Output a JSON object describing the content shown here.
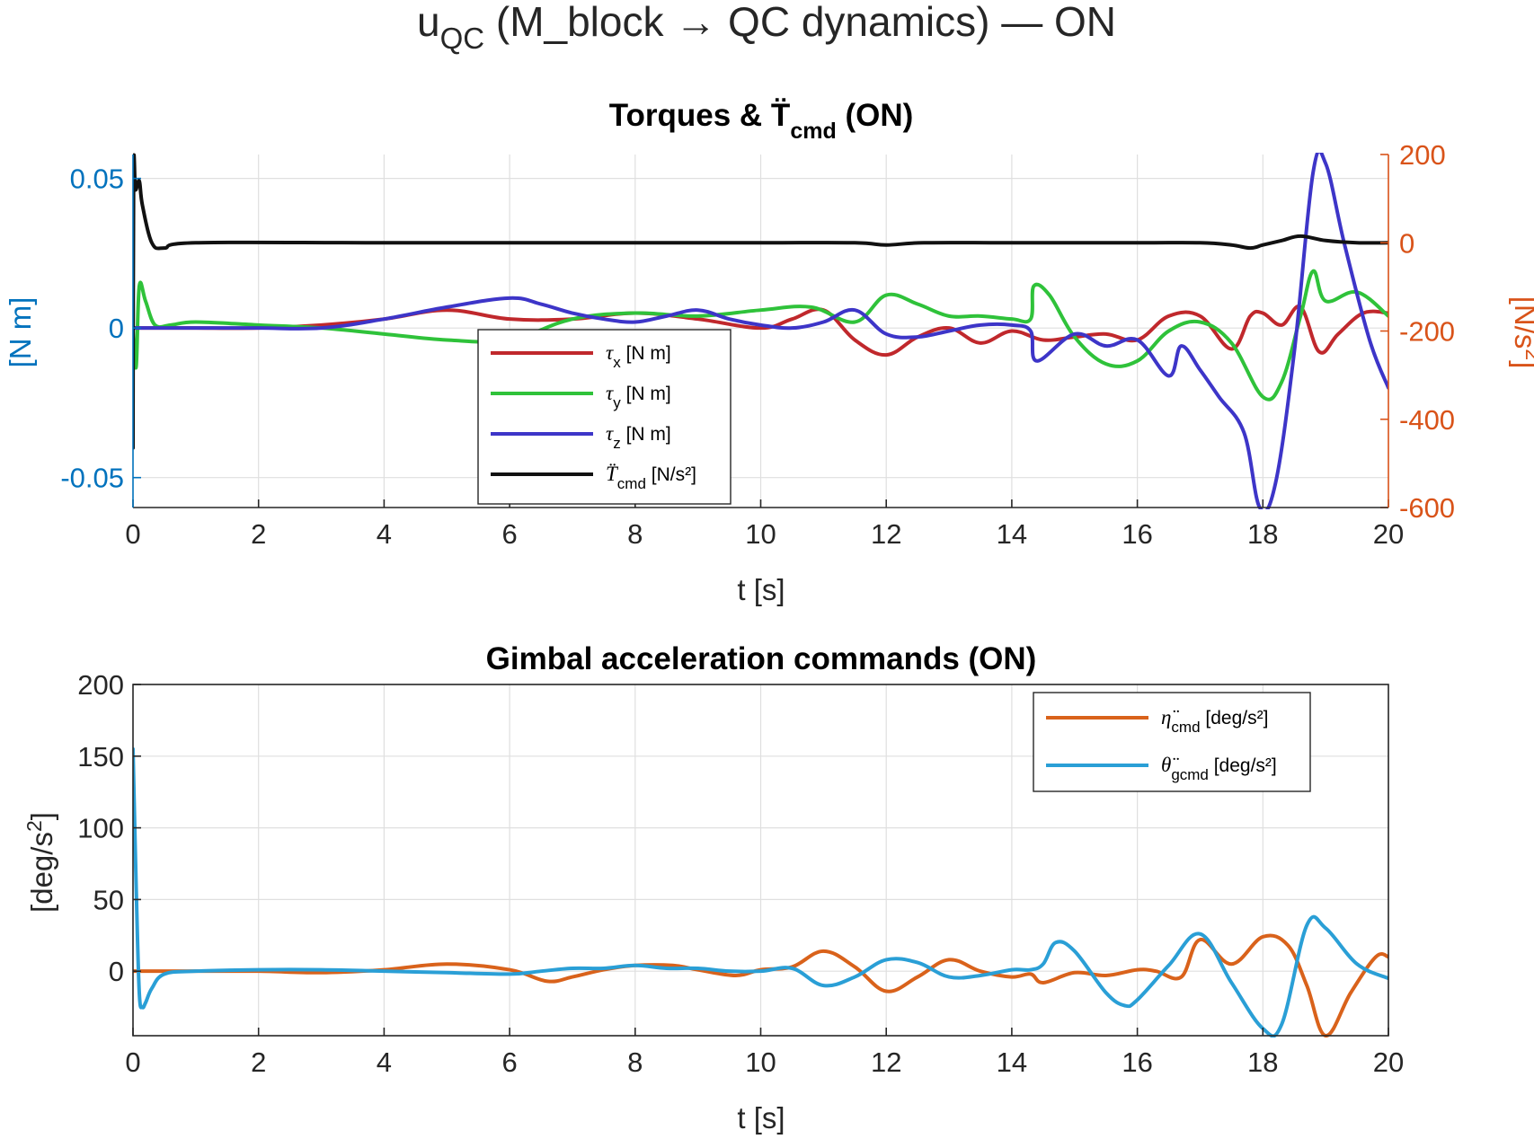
{
  "figure_title": {
    "main": "u",
    "sub": "QC",
    "rest": " (M_block → QC dynamics) — ON"
  },
  "colors": {
    "tau_x": "#c0282c",
    "tau_y": "#2fc23a",
    "tau_z": "#3d35c8",
    "T_cmd": "#111111",
    "eta_cmd": "#d9621b",
    "theta_gcmd": "#2a9fd6",
    "left_axis": "#0072bd",
    "right_axis": "#d95319"
  },
  "chart_data": [
    {
      "type": "line",
      "title": {
        "main": "Torques & T̈",
        "sub": "cmd",
        "tail": " (ON)"
      },
      "xlabel": "t [s]",
      "ylabel_left": "[N m]",
      "ylabel_right": {
        "main": "[N/s",
        "sup": "2",
        "tail": "]"
      },
      "xlim": [
        0,
        20
      ],
      "ylim_left": [
        -0.06,
        0.058
      ],
      "ylim_right": [
        -600,
        200
      ],
      "xticks": [
        "0",
        "2",
        "4",
        "6",
        "8",
        "10",
        "12",
        "14",
        "16",
        "18",
        "20"
      ],
      "yticks_left": [
        "0.05",
        "0",
        "-0.05"
      ],
      "yticks_left_values": [
        0.05,
        0,
        -0.05
      ],
      "yticks_right": [
        "200",
        "0",
        "-200",
        "-400",
        "-600"
      ],
      "yticks_right_values": [
        200,
        0,
        -200,
        -400,
        -600
      ],
      "grid": true,
      "legend_position": "center-bottom",
      "series": [
        {
          "key": "tau_x",
          "legend_sym": "τ",
          "legend_sub": "x",
          "legend_tail": " [N m]",
          "axis": "left",
          "x": [
            0,
            0.5,
            1,
            2,
            3,
            4,
            5,
            6,
            7,
            8,
            9,
            10,
            10.5,
            11,
            11.5,
            12,
            12.5,
            13,
            13.5,
            14,
            14.5,
            15,
            15.5,
            16,
            16.5,
            17,
            17.5,
            17.8,
            18,
            18.3,
            18.6,
            18.9,
            19.2,
            19.6,
            20
          ],
          "y": [
            0,
            0,
            0,
            0,
            0.001,
            0.003,
            0.006,
            0.003,
            0.003,
            0.005,
            0.003,
            0,
            0.003,
            0.006,
            -0.004,
            -0.009,
            -0.003,
            0,
            -0.005,
            -0.001,
            -0.004,
            -0.003,
            -0.002,
            -0.004,
            0.004,
            0.004,
            -0.007,
            0.004,
            0.005,
            0.001,
            0.007,
            -0.008,
            -0.002,
            0.005,
            0.005
          ]
        },
        {
          "key": "tau_y",
          "legend_sym": "τ",
          "legend_sub": "y",
          "legend_tail": " [N m]",
          "axis": "left",
          "x": [
            0,
            0.05,
            0.1,
            0.2,
            0.35,
            0.6,
            1,
            2,
            3,
            4,
            5,
            6,
            7,
            8,
            9,
            10,
            10.8,
            11.5,
            12,
            12.5,
            13,
            13.5,
            14,
            14.3,
            14.35,
            14.6,
            15,
            15.5,
            16,
            16.5,
            17,
            17.5,
            18,
            18.3,
            18.6,
            18.8,
            19,
            19.5,
            20
          ],
          "y": [
            0,
            -0.013,
            0.014,
            0.009,
            0.001,
            0.001,
            0.002,
            0.001,
            0,
            -0.002,
            -0.004,
            -0.004,
            0.003,
            0.005,
            0.004,
            0.006,
            0.007,
            0.002,
            0.011,
            0.008,
            0.004,
            0.004,
            0.003,
            0.003,
            0.014,
            0.011,
            -0.003,
            -0.012,
            -0.011,
            -0.001,
            0.002,
            -0.005,
            -0.023,
            -0.018,
            0.004,
            0.019,
            0.009,
            0.012,
            0.004
          ]
        },
        {
          "key": "tau_z",
          "legend_sym": "τ",
          "legend_sub": "z",
          "legend_tail": " [N m]",
          "axis": "left",
          "x": [
            0,
            1,
            2,
            3,
            4,
            5,
            6,
            6.5,
            7,
            7.5,
            8,
            8.5,
            9,
            9.5,
            10,
            10.5,
            11,
            11.5,
            12,
            12.5,
            13,
            13.5,
            14,
            14.3,
            14.4,
            15,
            15.5,
            16,
            16.5,
            16.7,
            17,
            17.3,
            17.7,
            17.95,
            18.2,
            18.5,
            18.8,
            19,
            19.3,
            19.7,
            20
          ],
          "y": [
            0,
            0,
            0,
            0,
            0.003,
            0.007,
            0.01,
            0.008,
            0.005,
            0.003,
            0.002,
            0.004,
            0.006,
            0.003,
            0.001,
            0,
            0.002,
            0.006,
            -0.002,
            -0.003,
            -0.001,
            0.001,
            0.001,
            -0.001,
            -0.011,
            -0.002,
            -0.006,
            -0.004,
            -0.016,
            -0.006,
            -0.014,
            -0.023,
            -0.035,
            -0.06,
            -0.052,
            -0.008,
            0.052,
            0.055,
            0.028,
            -0.004,
            -0.02
          ]
        },
        {
          "key": "T_cmd",
          "legend_sym": "T̈",
          "legend_sub": "cmd",
          "legend_tail": " [N/s²]",
          "axis": "right",
          "x": [
            0,
            0.01,
            0.04,
            0.1,
            0.15,
            0.3,
            0.5,
            1,
            4,
            8,
            10,
            11.5,
            12,
            12.6,
            14,
            16,
            17,
            17.5,
            17.8,
            18,
            18.3,
            18.6,
            19,
            19.5,
            20
          ],
          "y": [
            -465,
            160,
            120,
            140,
            85,
            0,
            -12,
            0,
            0,
            0,
            0,
            0,
            -5,
            0,
            0,
            0,
            0,
            -5,
            -12,
            -5,
            5,
            15,
            5,
            0,
            0
          ]
        }
      ]
    },
    {
      "type": "line",
      "title": {
        "main": "Gimbal acceleration commands (ON)",
        "sub": "",
        "tail": ""
      },
      "xlabel": "t [s]",
      "ylabel": {
        "main": "[deg/s",
        "sup": "2",
        "tail": "]"
      },
      "xlim": [
        0,
        20
      ],
      "ylim": [
        -45,
        200
      ],
      "xticks": [
        "0",
        "2",
        "4",
        "6",
        "8",
        "10",
        "12",
        "14",
        "16",
        "18",
        "20"
      ],
      "yticks": [
        "200",
        "150",
        "100",
        "50",
        "0"
      ],
      "yticks_values": [
        200,
        150,
        100,
        50,
        0
      ],
      "grid": true,
      "legend_position": "top-right",
      "series": [
        {
          "key": "eta_cmd",
          "legend_sym": "η̈",
          "legend_sub": "cmd",
          "legend_tail": " [deg/s²]",
          "x": [
            0,
            1,
            2,
            3,
            4,
            5,
            6,
            6.6,
            7,
            7.5,
            8,
            8.6,
            9,
            9.6,
            10,
            10.5,
            11,
            11.5,
            12,
            12.5,
            13,
            13.5,
            14,
            14.3,
            14.5,
            15,
            15.5,
            16,
            16.3,
            16.7,
            17,
            17.5,
            18,
            18.4,
            18.7,
            19,
            19.4,
            19.8,
            20
          ],
          "y": [
            0,
            0,
            0,
            -1,
            1,
            5,
            1,
            -7,
            -4,
            1,
            4,
            4,
            1,
            -3,
            1,
            3,
            14,
            3,
            -14,
            -4,
            8,
            0,
            -4,
            -2,
            -8,
            -1,
            -3,
            1,
            0,
            -4,
            22,
            5,
            24,
            18,
            -10,
            -45,
            -15,
            10,
            10
          ]
        },
        {
          "key": "theta_gcmd",
          "legend_sym": "θ̈",
          "legend_sub": "gcmd",
          "legend_tail": " [deg/s²]",
          "x": [
            0,
            0.05,
            0.1,
            0.15,
            0.2,
            0.3,
            0.5,
            1,
            2,
            3,
            4,
            5,
            6,
            6.5,
            7,
            7.5,
            8,
            8.5,
            9,
            9.5,
            10,
            10.5,
            11,
            11.5,
            12,
            12.5,
            13,
            13.5,
            14,
            14.3,
            14.5,
            14.7,
            15,
            15.5,
            15.8,
            16,
            16.5,
            17,
            17.5,
            18,
            18.3,
            18.7,
            19,
            19.5,
            20
          ],
          "y": [
            155,
            60,
            -15,
            -25,
            -22,
            -12,
            -2,
            0,
            1,
            1,
            0,
            -1,
            -2,
            0,
            2,
            2,
            4,
            2,
            2,
            0,
            0,
            2,
            -10,
            -4,
            8,
            6,
            -4,
            -3,
            1,
            1,
            5,
            20,
            14,
            -15,
            -24,
            -20,
            4,
            26,
            -8,
            -40,
            -37,
            32,
            30,
            5,
            -5
          ]
        }
      ]
    }
  ]
}
